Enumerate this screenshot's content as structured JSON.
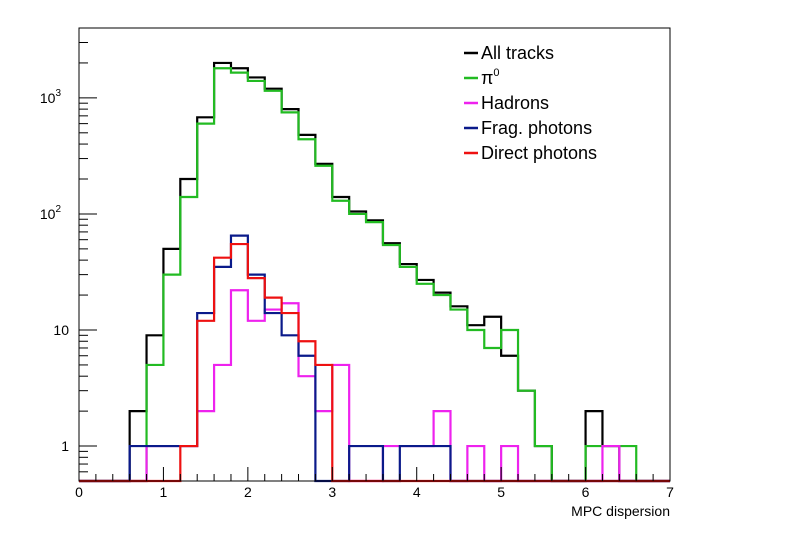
{
  "chart_data": {
    "type": "line",
    "style": "step-histogram",
    "xlabel": "MPC dispersion",
    "ylabel": "",
    "xlim": [
      0,
      7
    ],
    "ylim": [
      0.5,
      4000
    ],
    "yscale": "log",
    "bin_width": 0.2,
    "x_ticks": [
      "0",
      "1",
      "2",
      "3",
      "4",
      "5",
      "6",
      "7"
    ],
    "y_ticks": [
      {
        "value": 1,
        "label": "1",
        "sup": ""
      },
      {
        "value": 10,
        "label": "10",
        "sup": ""
      },
      {
        "value": 100,
        "label": "10",
        "sup": "2"
      },
      {
        "value": 1000,
        "label": "10",
        "sup": "3"
      }
    ],
    "legend_position": "top-right",
    "series": [
      {
        "name": "All tracks",
        "legend_label": "All tracks",
        "legend_sup": "",
        "color": "#000000",
        "values": [
          0,
          0,
          0,
          2,
          9,
          50,
          200,
          680,
          2000,
          1800,
          1500,
          1200,
          800,
          480,
          270,
          140,
          105,
          88,
          56,
          37,
          27,
          21,
          16,
          11,
          13,
          6,
          3,
          1,
          0,
          0,
          2,
          1,
          0,
          0,
          0
        ]
      },
      {
        "name": "pi0",
        "legend_label": "π",
        "legend_sup": "0",
        "color": "#22bb22",
        "values": [
          0,
          0,
          0,
          0,
          5,
          30,
          140,
          600,
          1800,
          1650,
          1400,
          1150,
          750,
          440,
          260,
          130,
          100,
          85,
          54,
          35,
          25,
          20,
          15,
          10,
          7,
          10,
          3,
          1,
          0,
          0,
          1,
          1,
          1,
          0,
          0
        ]
      },
      {
        "name": "Hadrons",
        "legend_label": "Hadrons",
        "legend_sup": "",
        "color": "#ee22ee",
        "values": [
          0,
          0,
          0,
          0,
          1,
          1,
          1,
          2,
          5,
          22,
          12,
          15,
          17,
          4,
          2,
          5,
          0,
          0,
          1,
          1,
          1,
          2,
          0,
          1,
          0,
          1,
          0,
          0,
          0,
          0,
          0,
          1,
          0,
          0,
          0
        ]
      },
      {
        "name": "Frag. photons",
        "legend_label": "Frag. photons",
        "legend_sup": "",
        "color": "#0a1a8a",
        "values": [
          0,
          0,
          0,
          1,
          1,
          1,
          1,
          14,
          35,
          65,
          30,
          14,
          9,
          6,
          0,
          0,
          1,
          1,
          0,
          1,
          1,
          1,
          0,
          0,
          0,
          0,
          0,
          0,
          0,
          0,
          0,
          0,
          0,
          0,
          0
        ]
      },
      {
        "name": "Direct photons",
        "legend_label": "Direct photons",
        "legend_sup": "",
        "color": "#ee1111",
        "values": [
          0,
          0,
          0,
          0,
          0,
          0,
          1,
          12,
          42,
          55,
          28,
          19,
          14,
          8,
          5,
          0,
          0,
          0,
          0,
          0,
          0,
          0,
          0,
          0,
          0,
          0,
          0,
          0,
          0,
          0,
          0,
          0,
          0,
          0,
          0
        ]
      }
    ]
  }
}
